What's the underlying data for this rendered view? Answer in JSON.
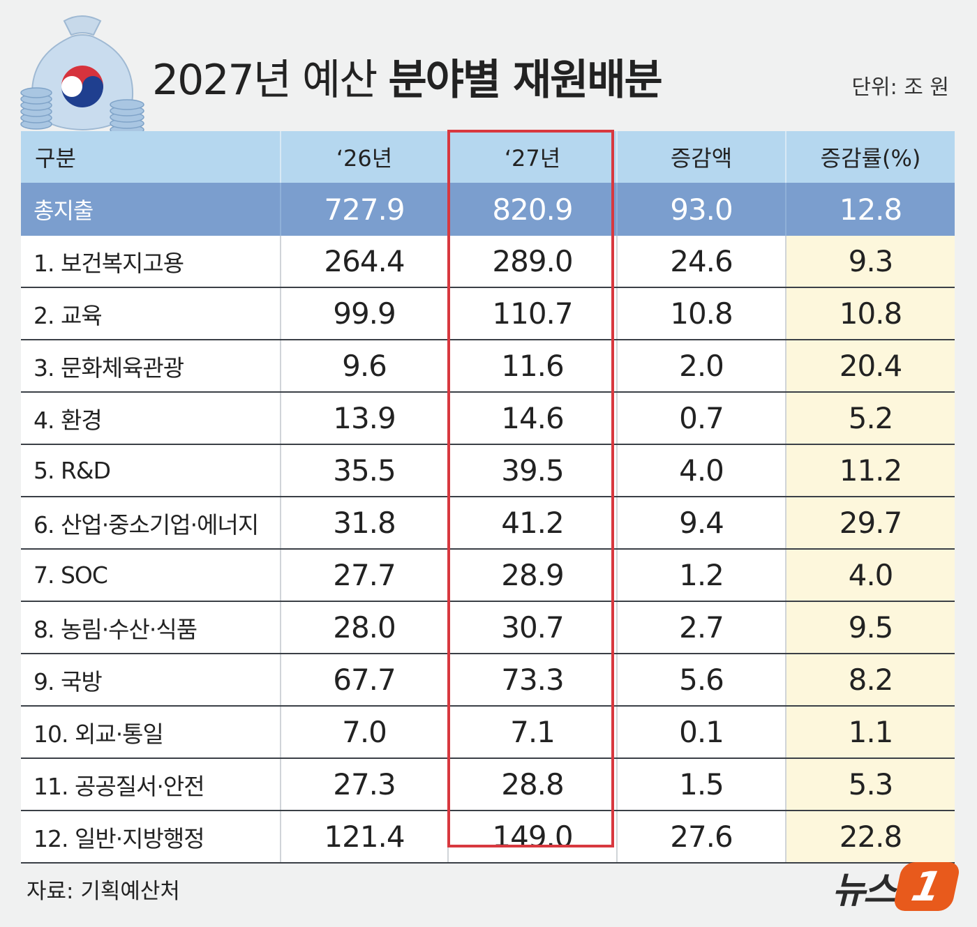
{
  "title_regular": "2027년 예산 ",
  "title_bold": "분야별 재원배분",
  "unit": "단위: 조 원",
  "source": "자료: 기획예산처",
  "logo": {
    "text": "뉴스",
    "mark": "1"
  },
  "icon": "money-bag-with-taegeuk-and-coins",
  "colors": {
    "header": "#b5d7ef",
    "total_row": "#7b9ece",
    "rate_column": "#fdf7dc",
    "highlight_border": "#d8383f",
    "logo_mark": "#e85a1c"
  },
  "chart_data": {
    "type": "table",
    "columns": [
      "구분",
      "‘26년",
      "‘27년",
      "증감액",
      "증감률(%)"
    ],
    "highlighted_column": "‘27년",
    "rows": [
      [
        "총지출",
        "727.9",
        "820.9",
        "93.0",
        "12.8"
      ],
      [
        "1. 보건복지고용",
        "264.4",
        "289.0",
        "24.6",
        "9.3"
      ],
      [
        "2. 교육",
        "99.9",
        "110.7",
        "10.8",
        "10.8"
      ],
      [
        "3. 문화체육관광",
        "9.6",
        "11.6",
        "2.0",
        "20.4"
      ],
      [
        "4. 환경",
        "13.9",
        "14.6",
        "0.7",
        "5.2"
      ],
      [
        "5. R&D",
        "35.5",
        "39.5",
        "4.0",
        "11.2"
      ],
      [
        "6. 산업·중소기업·에너지",
        "31.8",
        "41.2",
        "9.4",
        "29.7"
      ],
      [
        "7. SOC",
        "27.7",
        "28.9",
        "1.2",
        "4.0"
      ],
      [
        "8. 농림·수산·식품",
        "28.0",
        "30.7",
        "2.7",
        "9.5"
      ],
      [
        "9. 국방",
        "67.7",
        "73.3",
        "5.6",
        "8.2"
      ],
      [
        "10. 외교·통일",
        "7.0",
        "7.1",
        "0.1",
        "1.1"
      ],
      [
        "11. 공공질서·안전",
        "27.3",
        "28.8",
        "1.5",
        "5.3"
      ],
      [
        "12. 일반·지방행정",
        "121.4",
        "149.0",
        "27.6",
        "22.8"
      ]
    ]
  }
}
